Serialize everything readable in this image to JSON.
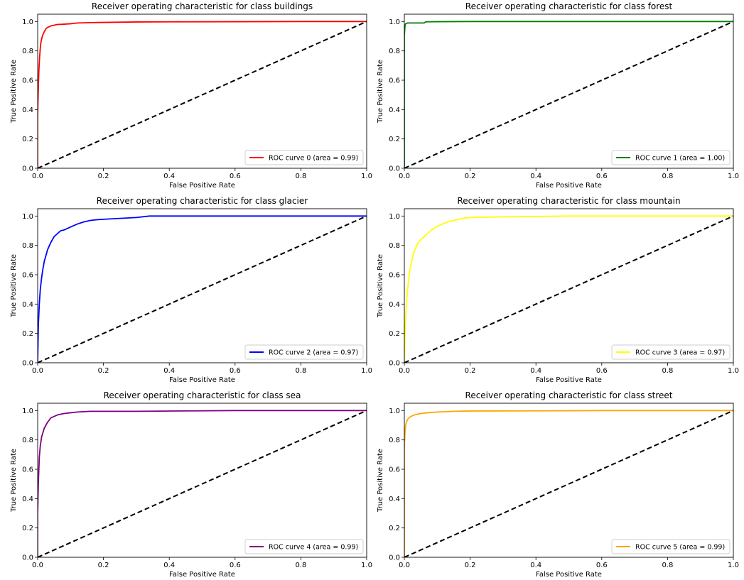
{
  "chart_data": [
    {
      "type": "line",
      "title": "Receiver operating characteristic for class buildings",
      "xlabel": "False Positive Rate",
      "ylabel": "True Positive Rate",
      "xlim": [
        0,
        1.0
      ],
      "ylim": [
        0,
        1.05
      ],
      "xticks": [
        "0.0",
        "0.2",
        "0.4",
        "0.6",
        "0.8",
        "1.0"
      ],
      "yticks": [
        "0.0",
        "0.2",
        "0.4",
        "0.6",
        "0.8",
        "1.0"
      ],
      "legend_position": "lower-right",
      "series": [
        {
          "name": "ROC curve 0 (area = 0.99)",
          "color": "#ff0000",
          "x": [
            0,
            0,
            0.002,
            0.004,
            0.006,
            0.008,
            0.01,
            0.013,
            0.016,
            0.02,
            0.025,
            0.03,
            0.04,
            0.05,
            0.06,
            0.08,
            0.1,
            0.12,
            0.15,
            0.2,
            0.3,
            0.4,
            0.6,
            0.8,
            1.0
          ],
          "y": [
            0,
            0.36,
            0.55,
            0.68,
            0.76,
            0.82,
            0.86,
            0.89,
            0.91,
            0.93,
            0.95,
            0.96,
            0.97,
            0.975,
            0.98,
            0.982,
            0.985,
            0.99,
            0.992,
            0.994,
            0.997,
            0.998,
            0.999,
            1.0,
            1.0
          ]
        },
        {
          "name": "",
          "color": "#000000",
          "dashed": true,
          "x": [
            0,
            1
          ],
          "y": [
            0,
            1
          ]
        }
      ]
    },
    {
      "type": "line",
      "title": "Receiver operating characteristic for class forest",
      "xlabel": "False Positive Rate",
      "ylabel": "True Positive Rate",
      "xlim": [
        0,
        1.0
      ],
      "ylim": [
        0,
        1.05
      ],
      "xticks": [
        "0.0",
        "0.2",
        "0.4",
        "0.6",
        "0.8",
        "1.0"
      ],
      "yticks": [
        "0.0",
        "0.2",
        "0.4",
        "0.6",
        "0.8",
        "1.0"
      ],
      "legend_position": "lower-right",
      "series": [
        {
          "name": "ROC curve 1 (area = 1.00)",
          "color": "#008000",
          "x": [
            0,
            0,
            0.002,
            0.004,
            0.01,
            0.03,
            0.06,
            0.065,
            0.1,
            0.2,
            0.4,
            0.6,
            0.8,
            1.0
          ],
          "y": [
            0,
            0.9,
            0.97,
            0.985,
            0.99,
            0.99,
            0.99,
            0.998,
            0.999,
            1.0,
            1.0,
            1.0,
            1.0,
            1.0
          ]
        },
        {
          "name": "",
          "color": "#000000",
          "dashed": true,
          "x": [
            0,
            1
          ],
          "y": [
            0,
            1
          ]
        }
      ]
    },
    {
      "type": "line",
      "title": "Receiver operating characteristic for class glacier",
      "xlabel": "False Positive Rate",
      "ylabel": "True Positive Rate",
      "xlim": [
        0,
        1.0
      ],
      "ylim": [
        0,
        1.05
      ],
      "xticks": [
        "0.0",
        "0.2",
        "0.4",
        "0.6",
        "0.8",
        "1.0"
      ],
      "yticks": [
        "0.0",
        "0.2",
        "0.4",
        "0.6",
        "0.8",
        "1.0"
      ],
      "legend_position": "lower-right",
      "series": [
        {
          "name": "ROC curve 2 (area = 0.97)",
          "color": "#0000ff",
          "x": [
            0,
            0.002,
            0.005,
            0.008,
            0.012,
            0.016,
            0.02,
            0.025,
            0.03,
            0.04,
            0.05,
            0.06,
            0.07,
            0.08,
            0.1,
            0.12,
            0.14,
            0.16,
            0.18,
            0.2,
            0.25,
            0.3,
            0.34,
            0.4,
            0.5,
            0.6,
            0.8,
            1.0
          ],
          "y": [
            0,
            0.25,
            0.4,
            0.5,
            0.58,
            0.64,
            0.69,
            0.73,
            0.77,
            0.82,
            0.86,
            0.88,
            0.9,
            0.905,
            0.925,
            0.945,
            0.96,
            0.97,
            0.975,
            0.978,
            0.984,
            0.99,
            1.0,
            1.0,
            1.0,
            1.0,
            1.0,
            1.0
          ]
        },
        {
          "name": "",
          "color": "#000000",
          "dashed": true,
          "x": [
            0,
            1
          ],
          "y": [
            0,
            1
          ]
        }
      ]
    },
    {
      "type": "line",
      "title": "Receiver operating characteristic for class mountain",
      "xlabel": "False Positive Rate",
      "ylabel": "True Positive Rate",
      "xlim": [
        0,
        1.0
      ],
      "ylim": [
        0,
        1.05
      ],
      "xticks": [
        "0.0",
        "0.2",
        "0.4",
        "0.6",
        "0.8",
        "1.0"
      ],
      "yticks": [
        "0.0",
        "0.2",
        "0.4",
        "0.6",
        "0.8",
        "1.0"
      ],
      "legend_position": "lower-right",
      "series": [
        {
          "name": "ROC curve 3 (area = 0.97)",
          "color": "#ffff00",
          "x": [
            0,
            0.002,
            0.005,
            0.008,
            0.012,
            0.016,
            0.02,
            0.025,
            0.03,
            0.04,
            0.05,
            0.06,
            0.07,
            0.08,
            0.1,
            0.12,
            0.14,
            0.16,
            0.18,
            0.2,
            0.25,
            0.3,
            0.4,
            0.5,
            0.6,
            0.8,
            1.0
          ],
          "y": [
            0,
            0.2,
            0.35,
            0.45,
            0.54,
            0.62,
            0.67,
            0.72,
            0.76,
            0.81,
            0.84,
            0.86,
            0.88,
            0.9,
            0.93,
            0.95,
            0.965,
            0.975,
            0.985,
            0.99,
            0.992,
            0.995,
            0.997,
            1.0,
            1.0,
            1.0,
            1.0
          ]
        },
        {
          "name": "",
          "color": "#000000",
          "dashed": true,
          "x": [
            0,
            1
          ],
          "y": [
            0,
            1
          ]
        }
      ]
    },
    {
      "type": "line",
      "title": "Receiver operating characteristic for class sea",
      "xlabel": "False Positive Rate",
      "ylabel": "True Positive Rate",
      "xlim": [
        0,
        1.0
      ],
      "ylim": [
        0,
        1.05
      ],
      "xticks": [
        "0.0",
        "0.2",
        "0.4",
        "0.6",
        "0.8",
        "1.0"
      ],
      "yticks": [
        "0.0",
        "0.2",
        "0.4",
        "0.6",
        "0.8",
        "1.0"
      ],
      "legend_position": "lower-right",
      "series": [
        {
          "name": "ROC curve 4 (area = 0.99)",
          "color": "#800080",
          "x": [
            0,
            0,
            0.002,
            0.005,
            0.008,
            0.012,
            0.016,
            0.02,
            0.025,
            0.03,
            0.04,
            0.05,
            0.06,
            0.08,
            0.1,
            0.12,
            0.16,
            0.2,
            0.3,
            0.48,
            0.6,
            0.8,
            1.0
          ],
          "y": [
            0,
            0.3,
            0.5,
            0.68,
            0.76,
            0.82,
            0.85,
            0.88,
            0.9,
            0.92,
            0.95,
            0.96,
            0.97,
            0.98,
            0.985,
            0.99,
            0.995,
            0.995,
            0.995,
            0.998,
            1.0,
            1.0,
            1.0
          ]
        },
        {
          "name": "",
          "color": "#000000",
          "dashed": true,
          "x": [
            0,
            1
          ],
          "y": [
            0,
            1
          ]
        }
      ]
    },
    {
      "type": "line",
      "title": "Receiver operating characteristic for class street",
      "xlabel": "False Positive Rate",
      "ylabel": "True Positive Rate",
      "xlim": [
        0,
        1.0
      ],
      "ylim": [
        0,
        1.05
      ],
      "xticks": [
        "0.0",
        "0.2",
        "0.4",
        "0.6",
        "0.8",
        "1.0"
      ],
      "yticks": [
        "0.0",
        "0.2",
        "0.4",
        "0.6",
        "0.8",
        "1.0"
      ],
      "legend_position": "lower-right",
      "series": [
        {
          "name": "ROC curve 5 (area = 0.99)",
          "color": "#ffa500",
          "x": [
            0,
            0,
            0.002,
            0.004,
            0.006,
            0.01,
            0.014,
            0.02,
            0.03,
            0.04,
            0.05,
            0.07,
            0.1,
            0.15,
            0.2,
            0.4,
            0.6,
            0.8,
            1.0
          ],
          "y": [
            0,
            0.75,
            0.85,
            0.9,
            0.92,
            0.94,
            0.95,
            0.96,
            0.97,
            0.975,
            0.98,
            0.985,
            0.99,
            0.995,
            0.997,
            0.998,
            1.0,
            1.0,
            1.0
          ]
        },
        {
          "name": "",
          "color": "#000000",
          "dashed": true,
          "x": [
            0,
            1
          ],
          "y": [
            0,
            1
          ]
        }
      ]
    }
  ]
}
